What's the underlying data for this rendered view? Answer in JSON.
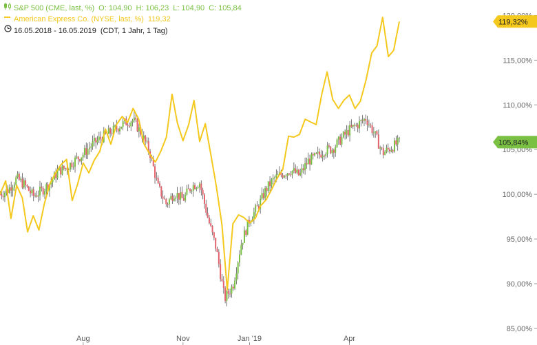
{
  "legend": {
    "sp500": {
      "name": "S&P 500 (CME, last, %)",
      "open": "O: 104,90",
      "high": "H: 106,23",
      "low": "L: 104,90",
      "close": "C: 105,84",
      "icon": "candlestick-icon",
      "color": "#7ac143"
    },
    "amex": {
      "name": "American Express Co. (NYSE, last, %)",
      "value": "119,32",
      "icon": "line-dash-icon",
      "color": "#f4c81c"
    },
    "period": {
      "range": "16.05.2018 - 16.05.2019",
      "info": "(CDT, 1 Jahr, 1 Tag)",
      "icon": "clock-icon"
    }
  },
  "chart_data": {
    "type": "line",
    "x_tick_labels": [
      "Aug",
      "Nov",
      "Jan '19",
      "Apr"
    ],
    "x_tick_months": [
      2.5,
      5.5,
      7.5,
      10.5
    ],
    "y_tick_values": [
      85,
      90,
      95,
      100,
      105,
      110,
      115,
      120
    ],
    "y_tick_labels": [
      "85,00%",
      "90,00%",
      "95,00%",
      "100,00%",
      "105,00%",
      "110,00%",
      "115,00%",
      "120,00%"
    ],
    "ylim": [
      84.3,
      121.5
    ],
    "grid": false,
    "badges": [
      {
        "series": "American Express Co.",
        "label": "119,32%",
        "value": 119.32,
        "color": "#f4c81c",
        "text_color": "#222222"
      },
      {
        "series": "S&P 500",
        "label": "105,84%",
        "value": 105.84,
        "color": "#7ac143",
        "text_color": "#222222"
      }
    ],
    "series": [
      {
        "name": "S&P 500",
        "style": "candlestick",
        "color_up": "#7ac143",
        "color_down": "#e3616c",
        "x": [
          0,
          0.25,
          0.5,
          0.75,
          1,
          1.25,
          1.5,
          1.75,
          2,
          2.25,
          2.5,
          2.75,
          3,
          3.25,
          3.5,
          3.75,
          4,
          4.25,
          4.5,
          4.75,
          5,
          5.25,
          5.5,
          5.75,
          6,
          6.25,
          6.5,
          6.75,
          7,
          7.25,
          7.5,
          7.75,
          8,
          8.25,
          8.5,
          8.75,
          9,
          9.25,
          9.5,
          9.75,
          10,
          10.25,
          10.5,
          10.75,
          11,
          11.25,
          11.5,
          11.75,
          12
        ],
        "values": [
          100.0,
          100.5,
          101.8,
          101.0,
          99.8,
          100.4,
          101.2,
          102.6,
          103.0,
          103.8,
          104.5,
          105.5,
          106.2,
          106.8,
          107.4,
          108.0,
          108.3,
          106.8,
          104.7,
          100.8,
          98.9,
          100.2,
          99.4,
          100.9,
          101.3,
          97.3,
          93.9,
          88.3,
          89.8,
          94.5,
          97.2,
          98.6,
          100.6,
          101.8,
          102.3,
          102.7,
          102.1,
          103.7,
          104.2,
          104.9,
          105.1,
          106.2,
          107.2,
          107.8,
          108.5,
          106.8,
          104.6,
          105.2,
          105.84
        ]
      },
      {
        "name": "American Express Co.",
        "style": "line",
        "color": "#f4c81c",
        "x": [
          0,
          0.17,
          0.33,
          0.5,
          0.67,
          0.83,
          1,
          1.17,
          1.33,
          1.5,
          1.67,
          1.83,
          2,
          2.17,
          2.33,
          2.5,
          2.67,
          2.83,
          3,
          3.17,
          3.33,
          3.5,
          3.67,
          3.83,
          4,
          4.17,
          4.33,
          4.5,
          4.67,
          4.83,
          5,
          5.17,
          5.33,
          5.5,
          5.67,
          5.83,
          6,
          6.17,
          6.33,
          6.5,
          6.67,
          6.83,
          7,
          7.17,
          7.33,
          7.5,
          7.67,
          7.83,
          8,
          8.17,
          8.33,
          8.5,
          8.67,
          8.83,
          9,
          9.17,
          9.33,
          9.5,
          9.67,
          9.83,
          10,
          10.17,
          10.33,
          10.5,
          10.67,
          10.83,
          11,
          11.17,
          11.33,
          11.5,
          11.67,
          11.83,
          12
        ],
        "values": [
          100.0,
          101.5,
          97.3,
          101.0,
          99.6,
          95.8,
          97.6,
          96.0,
          98.9,
          101.2,
          102.4,
          103.3,
          103.9,
          99.3,
          101.1,
          103.5,
          102.4,
          103.8,
          104.8,
          107.3,
          105.6,
          107.8,
          108.7,
          108.0,
          109.6,
          108.4,
          105.6,
          104.5,
          103.6,
          104.8,
          106.4,
          111.2,
          108.0,
          106.0,
          107.8,
          110.5,
          105.9,
          107.9,
          104.6,
          100.9,
          96.6,
          89.3,
          96.7,
          97.7,
          97.4,
          96.8,
          97.3,
          98.7,
          99.4,
          100.6,
          101.8,
          102.8,
          106.5,
          106.4,
          106.7,
          108.4,
          108.1,
          107.8,
          111.2,
          113.7,
          110.6,
          109.6,
          110.5,
          111.1,
          109.6,
          110.4,
          112.8,
          115.8,
          116.6,
          119.8,
          115.4,
          116.1,
          119.32
        ]
      }
    ]
  }
}
